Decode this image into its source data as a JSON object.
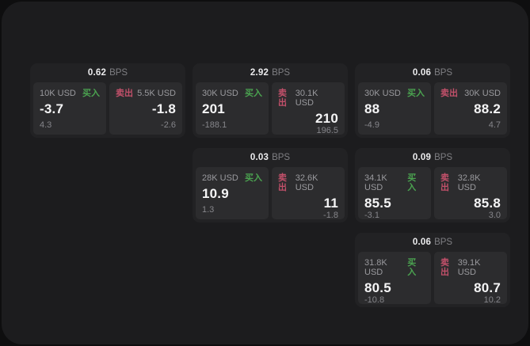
{
  "colors": {
    "buy_green": "#4ba350",
    "sell_red": "#c2506a",
    "surface_bg": "#1c1c1e",
    "card_bg": "#222224",
    "panel_bg": "#2c2c2e",
    "text_primary": "#f5f5f6",
    "text_muted": "#9a9a9e",
    "text_dim": "#85858a"
  },
  "cards": [
    {
      "bps": {
        "value": "0.62",
        "unit": "BPS"
      },
      "buy": {
        "amount": "10K USD",
        "side_label": "买入",
        "price": "-3.7",
        "change": "4.3"
      },
      "sell": {
        "amount": "5.5K USD",
        "side_label": "卖出",
        "price": "-1.8",
        "change": "-2.6"
      }
    },
    {
      "bps": {
        "value": "2.92",
        "unit": "BPS"
      },
      "buy": {
        "amount": "30K USD",
        "side_label": "买入",
        "price": "201",
        "change": "-188.1"
      },
      "sell": {
        "amount": "30.1K USD",
        "side_label": "卖出",
        "price": "210",
        "change": "196.5"
      }
    },
    {
      "bps": {
        "value": "0.06",
        "unit": "BPS"
      },
      "buy": {
        "amount": "30K USD",
        "side_label": "买入",
        "price": "88",
        "change": "-4.9"
      },
      "sell": {
        "amount": "30K USD",
        "side_label": "卖出",
        "price": "88.2",
        "change": "4.7"
      }
    },
    {
      "bps": {
        "value": "0.03",
        "unit": "BPS"
      },
      "buy": {
        "amount": "28K USD",
        "side_label": "买入",
        "price": "10.9",
        "change": "1.3"
      },
      "sell": {
        "amount": "32.6K USD",
        "side_label": "卖出",
        "price": "11",
        "change": "-1.8"
      }
    },
    {
      "bps": {
        "value": "0.09",
        "unit": "BPS"
      },
      "buy": {
        "amount": "34.1K USD",
        "side_label": "买入",
        "price": "85.5",
        "change": "-3.1"
      },
      "sell": {
        "amount": "32.8K USD",
        "side_label": "卖出",
        "price": "85.8",
        "change": "3.0"
      }
    },
    {
      "bps": {
        "value": "0.06",
        "unit": "BPS"
      },
      "buy": {
        "amount": "31.8K USD",
        "side_label": "买入",
        "price": "80.5",
        "change": "-10.8"
      },
      "sell": {
        "amount": "39.1K USD",
        "side_label": "卖出",
        "price": "80.7",
        "change": "10.2"
      }
    }
  ]
}
